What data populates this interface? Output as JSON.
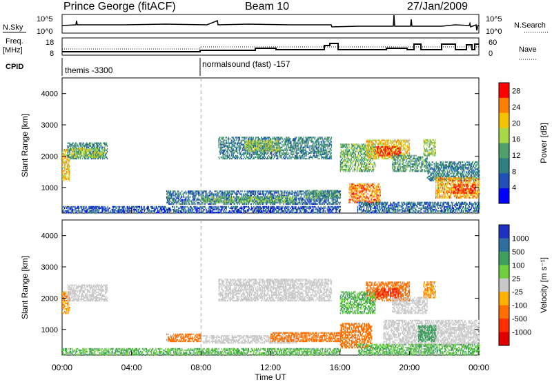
{
  "header": {
    "station": "Prince George (fitACF)",
    "beam": "Beam 10",
    "date": "27/Jan/2009"
  },
  "top_panels": {
    "nsky_label": "N.Sky",
    "nsky_ticks": [
      "10^5",
      "10^0"
    ],
    "nsearch_ticks": [
      "10^5",
      "10^0"
    ],
    "nsearch_label": "N.Search",
    "freq_label_1": "Freq.",
    "freq_label_2": "[MHz]",
    "freq_ticks": [
      "18",
      "8"
    ],
    "nave_ticks": [
      "60",
      "0"
    ],
    "nave_label": "Nave",
    "cpid_label": "CPID",
    "cpid_1": "themis -3300",
    "cpid_2": "normalsound (fast) -157"
  },
  "x_axis": {
    "ticks": [
      "00:00",
      "04:00",
      "08:00",
      "12:00",
      "16:00",
      "20:00",
      "00:00"
    ],
    "hours": [
      0,
      4,
      8,
      12,
      16,
      20,
      24
    ],
    "label": "Time UT"
  },
  "colors": {
    "power_scale": [
      "#0000ff",
      "#1f52b4",
      "#2f7f7f",
      "#4fa06a",
      "#a6d84a",
      "#f5c400",
      "#ff7f00",
      "#ff0000"
    ],
    "velocity_scale": [
      "#2030c0",
      "#2f6fa0",
      "#3f9f5f",
      "#6fcf3f",
      "#c8c8c8",
      "#ffb000",
      "#ff7000",
      "#ff3000",
      "#e00000"
    ]
  },
  "chart_data": [
    {
      "type": "heatmap",
      "name": "power",
      "ylabel": "Slant Range [km]",
      "yticks": [
        1000,
        2000,
        3000,
        4000
      ],
      "ylim": [
        180,
        4500
      ],
      "xlim": [
        0,
        24
      ],
      "colorbar_label": "Power [dB]",
      "colorbar_ticks": [
        4,
        8,
        12,
        16,
        20,
        24,
        28
      ],
      "colorbar_range": [
        0,
        30
      ],
      "regions": [
        {
          "t0": 0.0,
          "t1": 0.4,
          "r0": 1200,
          "r1": 2200,
          "value": 20
        },
        {
          "t0": 0.3,
          "t1": 2.6,
          "r0": 1900,
          "r1": 2400,
          "value": 10
        },
        {
          "t0": 0.5,
          "t1": 2.5,
          "r0": 1950,
          "r1": 2250,
          "value": 16
        },
        {
          "t0": 0.0,
          "t1": 16.0,
          "r0": 180,
          "r1": 400,
          "value": 6
        },
        {
          "t0": 6.0,
          "t1": 16.0,
          "r0": 450,
          "r1": 900,
          "value": 8
        },
        {
          "t0": 8.0,
          "t1": 13.5,
          "r0": 500,
          "r1": 700,
          "value": 14
        },
        {
          "t0": 14.0,
          "t1": 16.0,
          "r0": 650,
          "r1": 900,
          "value": 12
        },
        {
          "t0": 9.0,
          "t1": 15.5,
          "r0": 1900,
          "r1": 2600,
          "value": 10
        },
        {
          "t0": 10.5,
          "t1": 12.5,
          "r0": 2150,
          "r1": 2500,
          "value": 16
        },
        {
          "t0": 16.0,
          "t1": 18.0,
          "r0": 1500,
          "r1": 2400,
          "value": 14
        },
        {
          "t0": 16.5,
          "t1": 18.3,
          "r0": 500,
          "r1": 1100,
          "value": 24
        },
        {
          "t0": 17.5,
          "t1": 20.0,
          "r0": 1900,
          "r1": 2500,
          "value": 20
        },
        {
          "t0": 18.0,
          "t1": 19.5,
          "r0": 2000,
          "r1": 2300,
          "value": 28
        },
        {
          "t0": 19.0,
          "t1": 21.0,
          "r0": 1500,
          "r1": 2000,
          "value": 12
        },
        {
          "t0": 20.8,
          "t1": 21.5,
          "r0": 2000,
          "r1": 2500,
          "value": 16
        },
        {
          "t0": 21.0,
          "t1": 24.0,
          "r0": 1200,
          "r1": 1800,
          "value": 10
        },
        {
          "t0": 21.5,
          "t1": 24.0,
          "r0": 650,
          "r1": 1300,
          "value": 22
        },
        {
          "t0": 22.5,
          "t1": 23.8,
          "r0": 800,
          "r1": 1100,
          "value": 28
        },
        {
          "t0": 17.0,
          "t1": 24.0,
          "r0": 180,
          "r1": 500,
          "value": 8
        }
      ]
    },
    {
      "type": "heatmap",
      "name": "velocity",
      "ylabel": "Slant Range [km]",
      "yticks": [
        1000,
        2000,
        3000,
        4000
      ],
      "ylim": [
        180,
        4500
      ],
      "xlim": [
        0,
        24
      ],
      "colorbar_label": "Velocity [m s⁻¹]",
      "colorbar_ticks": [
        "1000",
        "500",
        "100",
        "25",
        "-25",
        "-100",
        "-500",
        "-1000"
      ],
      "regions": [
        {
          "t0": 0.0,
          "t1": 0.4,
          "r0": 1500,
          "r1": 2200,
          "value": -100
        },
        {
          "t0": 0.3,
          "t1": 2.6,
          "r0": 1900,
          "r1": 2400,
          "value": 0
        },
        {
          "t0": 9.0,
          "t1": 15.5,
          "r0": 1900,
          "r1": 2600,
          "value": 0
        },
        {
          "t0": 0.0,
          "t1": 16.0,
          "r0": 180,
          "r1": 400,
          "value": 100
        },
        {
          "t0": 6.0,
          "t1": 8.0,
          "r0": 600,
          "r1": 850,
          "value": -300
        },
        {
          "t0": 8.0,
          "t1": 13.5,
          "r0": 550,
          "r1": 800,
          "value": 0
        },
        {
          "t0": 12.0,
          "t1": 16.0,
          "r0": 600,
          "r1": 900,
          "value": -300
        },
        {
          "t0": 16.0,
          "t1": 17.8,
          "r0": 400,
          "r1": 1200,
          "value": -300
        },
        {
          "t0": 17.5,
          "t1": 20.0,
          "r0": 1900,
          "r1": 2500,
          "value": -300
        },
        {
          "t0": 18.0,
          "t1": 19.5,
          "r0": 2000,
          "r1": 2300,
          "value": -800
        },
        {
          "t0": 16.0,
          "t1": 18.0,
          "r0": 1500,
          "r1": 2200,
          "value": 100
        },
        {
          "t0": 19.0,
          "t1": 21.0,
          "r0": 1500,
          "r1": 2000,
          "value": 0
        },
        {
          "t0": 20.8,
          "t1": 21.5,
          "r0": 2000,
          "r1": 2500,
          "value": -100
        },
        {
          "t0": 18.5,
          "t1": 24.0,
          "r0": 500,
          "r1": 1300,
          "value": 0
        },
        {
          "t0": 20.5,
          "t1": 21.5,
          "r0": 600,
          "r1": 1100,
          "value": 200
        },
        {
          "t0": 17.0,
          "t1": 24.0,
          "r0": 180,
          "r1": 500,
          "value": 100
        }
      ]
    }
  ]
}
